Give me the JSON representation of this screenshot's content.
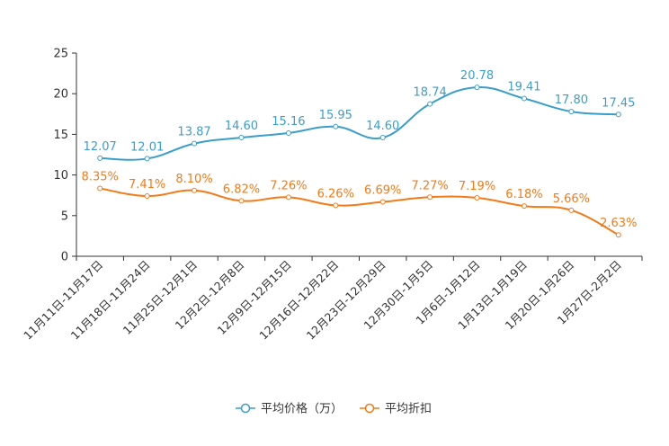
{
  "chart_data": {
    "type": "line",
    "categories": [
      "11月11日-11月17日",
      "11月18日-11月24日",
      "11月25日-12月1日",
      "12月2日-12月8日",
      "12月9日-12月15日",
      "12月16日-12月22日",
      "12月23日-12月29日",
      "12月30日-1月5日",
      "1月6日-1月12日",
      "1月13日-1月19日",
      "1月20日-1月26日",
      "1月27日-2月2日"
    ],
    "ylim": [
      0,
      25
    ],
    "yticks": [
      0,
      5,
      10,
      15,
      20,
      25
    ],
    "series": [
      {
        "name": "平均价格（万）",
        "color": "#3a9ecb",
        "values": [
          12.07,
          12.01,
          13.87,
          14.6,
          15.16,
          15.95,
          14.6,
          18.74,
          20.78,
          19.41,
          17.8,
          17.45
        ],
        "labels": [
          "12.07",
          "12.01",
          "13.87",
          "14.60",
          "15.16",
          "15.95",
          "14.60",
          "18.74",
          "20.78",
          "19.41",
          "17.80",
          "17.45"
        ]
      },
      {
        "name": "平均折扣",
        "color": "#f47a17",
        "values": [
          8.35,
          7.41,
          8.1,
          6.82,
          7.26,
          6.26,
          6.69,
          7.27,
          7.19,
          6.18,
          5.66,
          2.63
        ],
        "labels": [
          "8.35%",
          "7.41%",
          "8.10%",
          "6.82%",
          "7.26%",
          "6.26%",
          "6.69%",
          "7.27%",
          "7.19%",
          "6.18%",
          "5.66%",
          "2.63%"
        ]
      }
    ],
    "legend_position": "bottom"
  }
}
